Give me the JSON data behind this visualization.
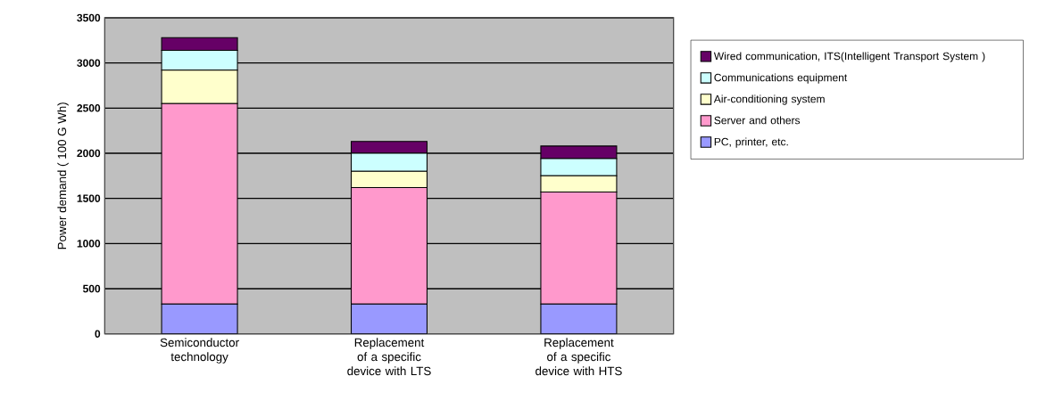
{
  "chart_data": {
    "type": "bar",
    "stacked": true,
    "ylabel": "Power demand ( 100 G Wh)",
    "categories": [
      "Semiconductor technology",
      "Replacement of a specific device with LTS",
      "Replacement of a specific device with HTS"
    ],
    "series": [
      {
        "name": "PC, printer, etc.",
        "color": "#9999ff",
        "values": [
          330,
          330,
          330
        ]
      },
      {
        "name": "Server and others",
        "color": "#ff99cc",
        "values": [
          2220,
          1290,
          1240
        ]
      },
      {
        "name": "Air-conditioning system",
        "color": "#ffffcc",
        "values": [
          370,
          180,
          180
        ]
      },
      {
        "name": "Communications equipment",
        "color": "#ccffff",
        "values": [
          220,
          200,
          190
        ]
      },
      {
        "name": "Wired communication, ITS(Intelligent Transport System )",
        "color": "#660066",
        "values": [
          140,
          130,
          140
        ]
      }
    ],
    "ylim": [
      0,
      3500
    ],
    "yticks": [
      0,
      500,
      1000,
      1500,
      2000,
      2500,
      3000,
      3500
    ],
    "grid": "y",
    "legend": "right"
  }
}
